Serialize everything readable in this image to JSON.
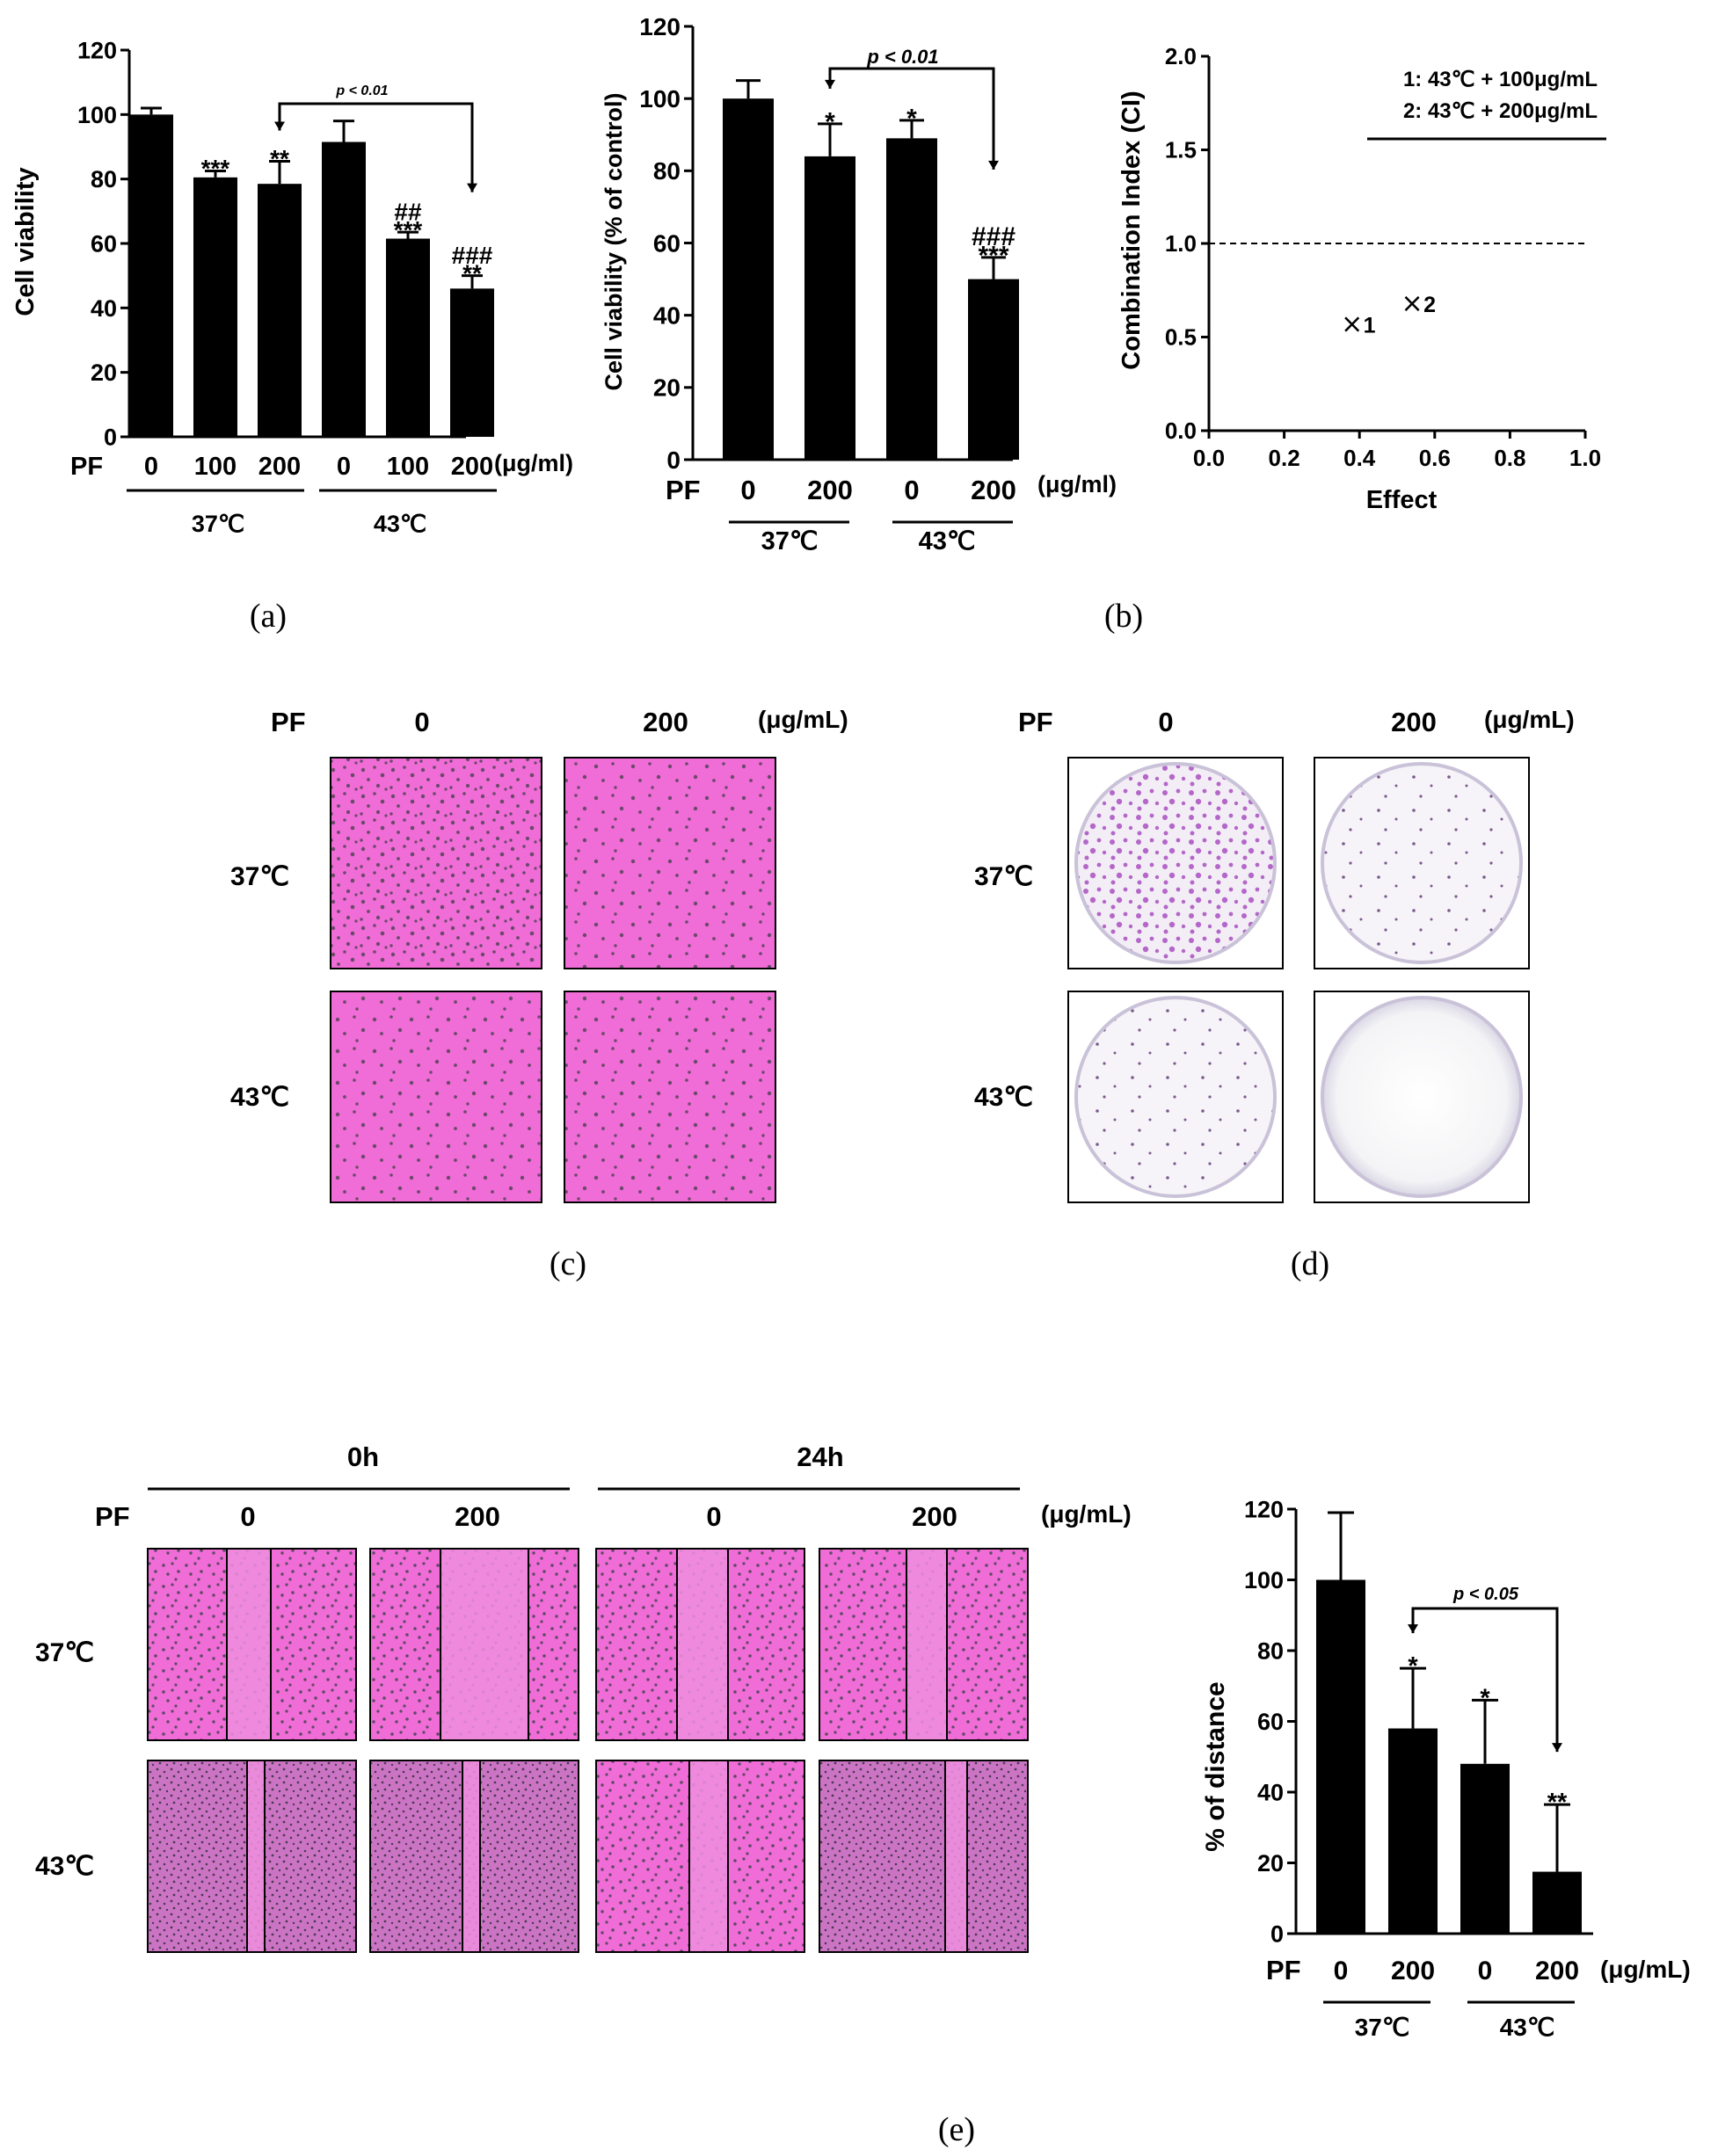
{
  "chart_data": [
    {
      "id": "a",
      "type": "bar",
      "ylabel": "Cell viability",
      "ylim": [
        0,
        120
      ],
      "yticks": [
        "0",
        "20",
        "40",
        "60",
        "80",
        "100",
        "120"
      ],
      "row_label": "PF",
      "unit": "(μg/ml)",
      "categories": [
        "0",
        "100",
        "200",
        "0",
        "100",
        "200"
      ],
      "values": [
        100,
        80.5,
        78.5,
        91.5,
        61.5,
        46
      ],
      "errors": [
        2,
        2,
        7,
        6.5,
        2,
        4
      ],
      "annotations": [
        "",
        "***",
        "**",
        "",
        "##\n***",
        "###\n**"
      ],
      "groups": [
        {
          "label": "37℃",
          "from": 0,
          "to": 2
        },
        {
          "label": "43℃",
          "from": 3,
          "to": 5
        }
      ],
      "bracket": {
        "label": "p < 0.01",
        "from": 2,
        "to": 5
      },
      "caption": "(a)"
    },
    {
      "id": "b1",
      "type": "bar",
      "ylabel": "Cell viability (% of control)",
      "ylim": [
        0,
        120
      ],
      "yticks": [
        "0",
        "20",
        "40",
        "60",
        "80",
        "100",
        "120"
      ],
      "row_label": "PF",
      "unit": "(μg/ml)",
      "categories": [
        "0",
        "200",
        "0",
        "200"
      ],
      "values": [
        100,
        84,
        89,
        50
      ],
      "errors": [
        5,
        9,
        5,
        6
      ],
      "annotations": [
        "",
        "*",
        "*",
        "###\n***"
      ],
      "groups": [
        {
          "label": "37℃",
          "from": 0,
          "to": 1
        },
        {
          "label": "43℃",
          "from": 2,
          "to": 3
        }
      ],
      "bracket": {
        "label": "p < 0.01",
        "from": 1,
        "to": 3
      },
      "caption": "(b)"
    },
    {
      "id": "b2",
      "type": "scatter",
      "xlabel": "Effect",
      "ylabel": "Combination Index (CI)",
      "xlim": [
        0,
        1
      ],
      "ylim": [
        0,
        2
      ],
      "xticks": [
        "0.0",
        "0.2",
        "0.4",
        "0.6",
        "0.8",
        "1.0"
      ],
      "yticks": [
        "0.0",
        "0.5",
        "1.0",
        "1.5",
        "2.0"
      ],
      "reference_line": 1.0,
      "points": [
        {
          "label": "1",
          "x": 0.38,
          "y": 0.57
        },
        {
          "label": "2",
          "x": 0.54,
          "y": 0.68
        }
      ],
      "legend": [
        "1: 43℃ + 100μg/mL",
        "2: 43℃ + 200μg/mL"
      ]
    },
    {
      "id": "e2",
      "type": "bar",
      "ylabel": "% of distance",
      "ylim": [
        0,
        120
      ],
      "yticks": [
        "0",
        "20",
        "40",
        "60",
        "80",
        "100",
        "120"
      ],
      "row_label": "PF",
      "unit": "(μg/mL)",
      "categories": [
        "0",
        "200",
        "0",
        "200"
      ],
      "values": [
        100,
        58,
        48,
        17.5
      ],
      "errors": [
        19,
        17,
        18,
        19
      ],
      "annotations": [
        "",
        "*",
        "*",
        "**"
      ],
      "groups": [
        {
          "label": "37℃",
          "from": 0,
          "to": 1
        },
        {
          "label": "43℃",
          "from": 2,
          "to": 3
        }
      ],
      "bracket": {
        "label": "p < 0.05",
        "from": 1,
        "to": 3
      },
      "caption": "(e)"
    }
  ],
  "panel_c": {
    "row_label": "PF",
    "col_0": "0",
    "col_1": "200",
    "unit": "(μg/mL)",
    "row_37": "37℃",
    "row_43": "43℃",
    "caption": "(c)",
    "colors": {
      "bg": "#f06cd6",
      "cell": "#6a4a6a"
    }
  },
  "panel_d": {
    "row_label": "PF",
    "col_0": "0",
    "col_1": "200",
    "unit": "(μg/mL)",
    "row_37": "37℃",
    "row_43": "43℃",
    "caption": "(d)",
    "colors": {
      "colony": "#b467c8",
      "dish": "#f4f4f4"
    }
  },
  "panel_e": {
    "time_0": "0h",
    "time_24": "24h",
    "row_label": "PF",
    "col_a": "0",
    "col_b": "200",
    "col_c": "0",
    "col_d": "200",
    "unit": "(μg/mL)",
    "row_37": "37℃",
    "row_43": "43℃"
  }
}
